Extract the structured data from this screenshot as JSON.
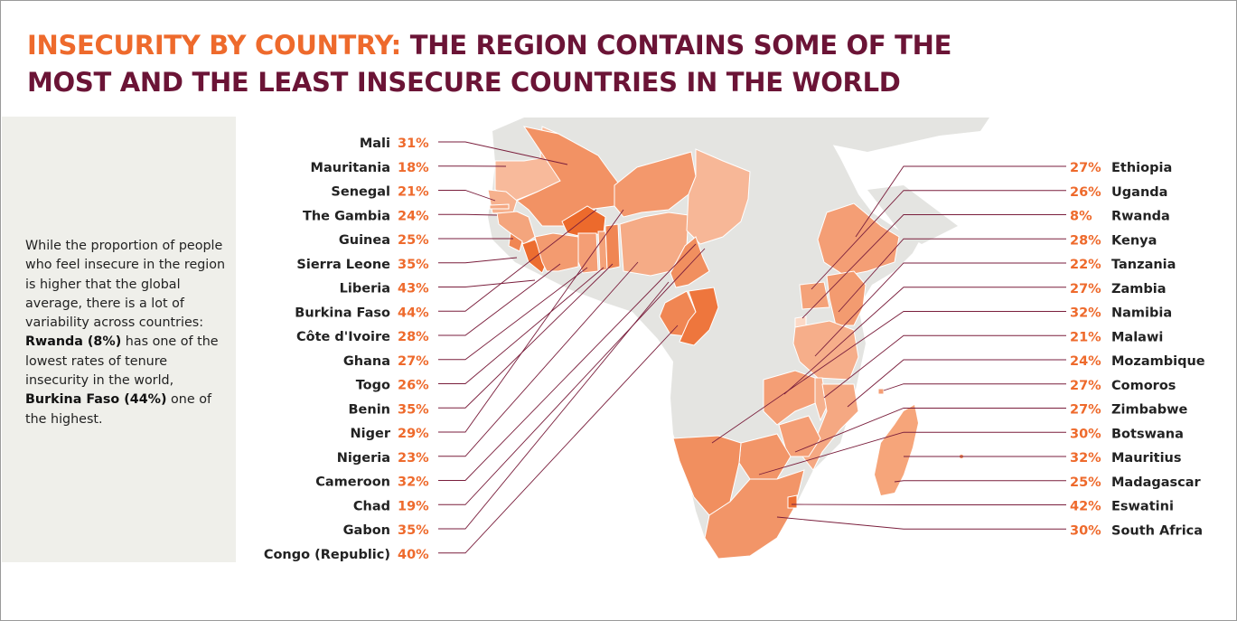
{
  "header": {
    "title_accent": "INSECURITY BY COUNTRY:",
    "title_rest": " THE REGION CONTAINS SOME OF THE MOST AND THE LEAST INSECURE COUNTRIES IN THE WORLD"
  },
  "sidebar": {
    "text_1": "While the proportion of people who feel insecure in the region is higher that the global average, there is a lot of variability across countries: ",
    "bold_1": "Rwanda (8%)",
    "text_2": " has one of the lowest rates of tenure insecurity in the world, ",
    "bold_2": "Burkina Faso (44%)",
    "text_3": " one of the highest."
  },
  "colors": {
    "title_dark": "#6b1436",
    "accent": "#ee6a2c",
    "leader_line": "#7a1e3c",
    "non_region": "#e4e4e1",
    "scale_low": "#fcd9c6",
    "scale_high": "#ec6a2c"
  },
  "chart_data": {
    "type": "choropleth-map",
    "unit": "%",
    "left_labels": [
      {
        "country": "Mali",
        "value": 31
      },
      {
        "country": "Mauritania",
        "value": 18
      },
      {
        "country": "Senegal",
        "value": 21
      },
      {
        "country": "The Gambia",
        "value": 24
      },
      {
        "country": "Guinea",
        "value": 25
      },
      {
        "country": "Sierra Leone",
        "value": 35
      },
      {
        "country": "Liberia",
        "value": 43
      },
      {
        "country": "Burkina Faso",
        "value": 44
      },
      {
        "country": "Côte d'Ivoire",
        "value": 28
      },
      {
        "country": "Ghana",
        "value": 27
      },
      {
        "country": "Togo",
        "value": 26
      },
      {
        "country": "Benin",
        "value": 35
      },
      {
        "country": "Niger",
        "value": 29
      },
      {
        "country": "Nigeria",
        "value": 23
      },
      {
        "country": "Cameroon",
        "value": 32
      },
      {
        "country": "Chad",
        "value": 19
      },
      {
        "country": "Gabon",
        "value": 35
      },
      {
        "country": "Congo (Republic)",
        "value": 40
      }
    ],
    "right_labels": [
      {
        "country": "Ethiopia",
        "value": 27
      },
      {
        "country": "Uganda",
        "value": 26
      },
      {
        "country": "Rwanda",
        "value": 8
      },
      {
        "country": "Kenya",
        "value": 28
      },
      {
        "country": "Tanzania",
        "value": 22
      },
      {
        "country": "Zambia",
        "value": 27
      },
      {
        "country": "Namibia",
        "value": 32
      },
      {
        "country": "Malawi",
        "value": 21
      },
      {
        "country": "Mozambique",
        "value": 24
      },
      {
        "country": "Comoros",
        "value": 27
      },
      {
        "country": "Zimbabwe",
        "value": 27
      },
      {
        "country": "Botswana",
        "value": 30
      },
      {
        "country": "Mauritius",
        "value": 32
      },
      {
        "country": "Madagascar",
        "value": 25
      },
      {
        "country": "Eswatini",
        "value": 42
      },
      {
        "country": "South Africa",
        "value": 30
      }
    ]
  }
}
